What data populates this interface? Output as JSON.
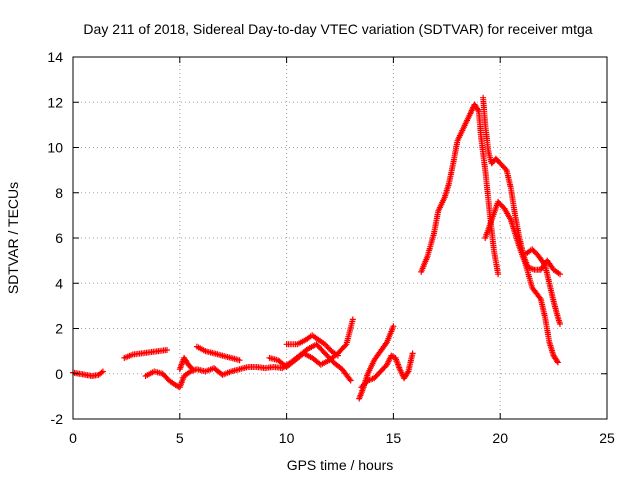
{
  "chart_data": {
    "type": "scatter",
    "title": "Day 211 of 2018, Sidereal Day-to-day VTEC variation (SDTVAR) for receiver mtga",
    "xlabel": "GPS time / hours",
    "ylabel": "SDTVAR / TECUs",
    "xlim": [
      0,
      25
    ],
    "ylim": [
      -2,
      14
    ],
    "xticks": [
      "0",
      "5",
      "10",
      "15",
      "20",
      "25"
    ],
    "yticks": [
      "-2",
      "0",
      "2",
      "4",
      "6",
      "8",
      "10",
      "12",
      "14"
    ],
    "grid": true,
    "marker": "plus",
    "series": [
      {
        "name": "SDTVAR",
        "color": "#ff0000",
        "segments": [
          [
            [
              0.0,
              0.05
            ],
            [
              0.3,
              0.0
            ],
            [
              0.6,
              -0.05
            ],
            [
              0.9,
              -0.1
            ],
            [
              1.2,
              -0.05
            ],
            [
              1.4,
              0.1
            ]
          ],
          [
            [
              2.4,
              0.7
            ],
            [
              2.8,
              0.85
            ],
            [
              3.2,
              0.9
            ],
            [
              3.6,
              0.95
            ],
            [
              4.0,
              1.0
            ],
            [
              4.4,
              1.05
            ]
          ],
          [
            [
              3.4,
              -0.1
            ],
            [
              3.8,
              0.1
            ],
            [
              4.2,
              0.0
            ],
            [
              4.5,
              -0.3
            ],
            [
              4.8,
              -0.5
            ],
            [
              5.0,
              -0.6
            ],
            [
              5.2,
              -0.1
            ],
            [
              5.5,
              0.1
            ],
            [
              5.8,
              0.2
            ],
            [
              6.2,
              0.1
            ],
            [
              6.6,
              0.25
            ],
            [
              7.0,
              -0.05
            ],
            [
              7.4,
              0.1
            ],
            [
              7.8,
              0.2
            ],
            [
              8.2,
              0.3
            ],
            [
              8.6,
              0.3
            ],
            [
              9.0,
              0.25
            ],
            [
              9.4,
              0.3
            ],
            [
              9.8,
              0.25
            ],
            [
              10.2,
              0.5
            ],
            [
              10.6,
              0.8
            ],
            [
              11.0,
              1.1
            ],
            [
              11.4,
              1.3
            ],
            [
              11.8,
              0.9
            ],
            [
              12.2,
              0.5
            ],
            [
              12.6,
              0.2
            ],
            [
              13.0,
              -0.3
            ]
          ],
          [
            [
              5.0,
              0.2
            ],
            [
              5.2,
              0.7
            ],
            [
              5.4,
              0.4
            ],
            [
              5.6,
              0.2
            ]
          ],
          [
            [
              5.8,
              1.2
            ],
            [
              6.2,
              1.0
            ],
            [
              6.6,
              0.9
            ],
            [
              7.0,
              0.8
            ],
            [
              7.4,
              0.7
            ],
            [
              7.8,
              0.6
            ]
          ],
          [
            [
              9.2,
              0.7
            ],
            [
              9.6,
              0.6
            ],
            [
              10.0,
              0.3
            ],
            [
              10.4,
              0.6
            ],
            [
              10.8,
              0.9
            ],
            [
              11.2,
              0.7
            ],
            [
              11.6,
              0.4
            ],
            [
              12.0,
              0.6
            ],
            [
              12.4,
              0.9
            ],
            [
              12.8,
              1.3
            ],
            [
              13.1,
              2.4
            ]
          ],
          [
            [
              10.0,
              1.3
            ],
            [
              10.5,
              1.3
            ],
            [
              10.9,
              1.5
            ],
            [
              11.2,
              1.7
            ],
            [
              11.5,
              1.5
            ],
            [
              11.8,
              1.3
            ],
            [
              12.1,
              1.0
            ],
            [
              12.4,
              0.8
            ]
          ],
          [
            [
              13.4,
              -1.1
            ],
            [
              13.6,
              -0.6
            ],
            [
              13.8,
              0.0
            ],
            [
              14.1,
              0.6
            ],
            [
              14.4,
              1.0
            ],
            [
              14.7,
              1.4
            ],
            [
              15.0,
              2.1
            ]
          ],
          [
            [
              13.5,
              -0.6
            ],
            [
              13.8,
              -0.3
            ],
            [
              14.1,
              -0.2
            ],
            [
              14.4,
              0.1
            ],
            [
              14.7,
              0.4
            ],
            [
              14.9,
              0.8
            ],
            [
              15.1,
              0.7
            ],
            [
              15.3,
              0.2
            ],
            [
              15.5,
              -0.2
            ],
            [
              15.7,
              0.1
            ],
            [
              15.9,
              0.9
            ]
          ],
          [
            [
              16.3,
              4.5
            ],
            [
              16.6,
              5.2
            ],
            [
              16.9,
              6.2
            ],
            [
              17.1,
              7.2
            ],
            [
              17.4,
              7.8
            ],
            [
              17.6,
              8.4
            ],
            [
              17.8,
              9.3
            ],
            [
              18.0,
              10.3
            ],
            [
              18.3,
              10.9
            ],
            [
              18.6,
              11.5
            ],
            [
              18.8,
              11.9
            ],
            [
              19.0,
              11.6
            ],
            [
              19.1,
              10.5
            ],
            [
              19.3,
              9.0
            ],
            [
              19.5,
              7.2
            ],
            [
              19.7,
              5.5
            ],
            [
              19.9,
              4.4
            ]
          ],
          [
            [
              19.2,
              12.2
            ],
            [
              19.3,
              11.0
            ],
            [
              19.45,
              9.8
            ],
            [
              19.6,
              9.3
            ],
            [
              19.8,
              9.5
            ],
            [
              20.0,
              9.3
            ],
            [
              20.3,
              9.0
            ],
            [
              20.5,
              8.2
            ],
            [
              20.7,
              7.0
            ],
            [
              20.9,
              6.0
            ],
            [
              21.1,
              5.2
            ],
            [
              21.3,
              4.7
            ],
            [
              21.6,
              4.6
            ],
            [
              21.9,
              4.6
            ],
            [
              22.2,
              5.0
            ],
            [
              22.5,
              4.6
            ],
            [
              22.8,
              4.4
            ]
          ],
          [
            [
              19.3,
              6.0
            ],
            [
              19.6,
              6.8
            ],
            [
              19.9,
              7.6
            ],
            [
              20.2,
              7.3
            ],
            [
              20.5,
              6.8
            ],
            [
              20.7,
              6.2
            ],
            [
              20.9,
              5.6
            ],
            [
              21.2,
              4.8
            ],
            [
              21.5,
              3.8
            ],
            [
              21.9,
              3.3
            ],
            [
              22.1,
              2.5
            ],
            [
              22.3,
              1.4
            ],
            [
              22.5,
              0.8
            ],
            [
              22.7,
              0.5
            ]
          ],
          [
            [
              21.2,
              5.3
            ],
            [
              21.5,
              5.5
            ],
            [
              21.8,
              5.2
            ],
            [
              22.1,
              4.8
            ],
            [
              22.3,
              4.0
            ],
            [
              22.5,
              3.2
            ],
            [
              22.7,
              2.5
            ],
            [
              22.8,
              2.2
            ]
          ]
        ]
      }
    ]
  }
}
